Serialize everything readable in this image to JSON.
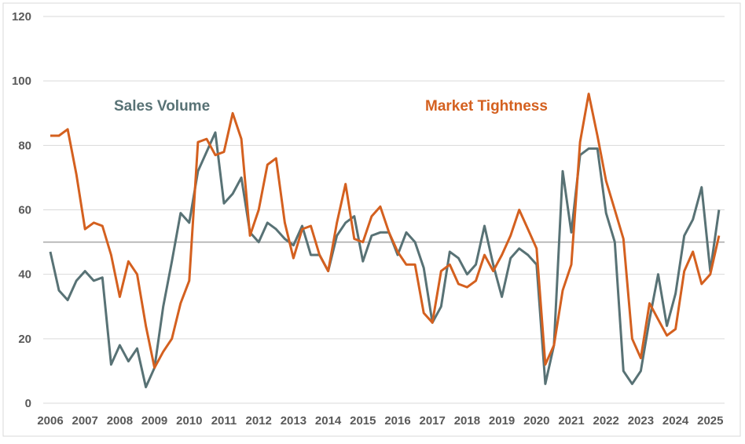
{
  "chart_data": {
    "type": "line",
    "title": "",
    "xlabel": "",
    "ylabel": "",
    "ylim": [
      0,
      120
    ],
    "yticks": [
      0,
      20,
      40,
      60,
      80,
      100,
      120
    ],
    "xticks": [
      "2006",
      "2007",
      "2008",
      "2009",
      "2010",
      "2011",
      "2012",
      "2013",
      "2014",
      "2015",
      "2016",
      "2017",
      "2018",
      "2019",
      "2020",
      "2021",
      "2022",
      "2023",
      "2024",
      "2025"
    ],
    "x_frequency": "quarterly",
    "x_start": "2006",
    "reference_line": 50,
    "grid": true,
    "series": [
      {
        "name": "Sales Volume",
        "color": "#587275",
        "values": [
          47,
          35,
          32,
          38,
          41,
          38,
          39,
          12,
          18,
          13,
          17,
          5,
          11,
          30,
          44,
          59,
          56,
          72,
          78,
          84,
          62,
          65,
          70,
          53,
          50,
          56,
          54,
          51,
          49,
          55,
          46,
          46,
          41,
          52,
          56,
          58,
          44,
          52,
          53,
          53,
          46,
          53,
          50,
          42,
          25,
          30,
          47,
          45,
          40,
          43,
          55,
          43,
          33,
          45,
          48,
          46,
          43,
          6,
          18,
          72,
          53,
          77,
          79,
          79,
          59,
          50,
          10,
          6,
          10,
          26,
          40,
          24,
          34,
          52,
          57,
          67,
          41,
          60
        ]
      },
      {
        "name": "Market Tightness",
        "color": "#d4601f",
        "values": [
          83,
          83,
          85,
          71,
          54,
          56,
          55,
          46,
          33,
          44,
          40,
          24,
          11,
          16,
          20,
          31,
          38,
          81,
          82,
          77,
          78,
          90,
          82,
          52,
          60,
          74,
          76,
          56,
          45,
          54,
          55,
          46,
          41,
          56,
          68,
          51,
          50,
          58,
          61,
          53,
          47,
          43,
          43,
          28,
          25,
          41,
          43,
          37,
          36,
          38,
          46,
          41,
          46,
          52,
          60,
          54,
          48,
          12,
          18,
          35,
          43,
          81,
          96,
          83,
          69,
          60,
          51,
          20,
          14,
          31,
          26,
          21,
          23,
          41,
          47,
          37,
          40,
          52
        ]
      }
    ]
  }
}
